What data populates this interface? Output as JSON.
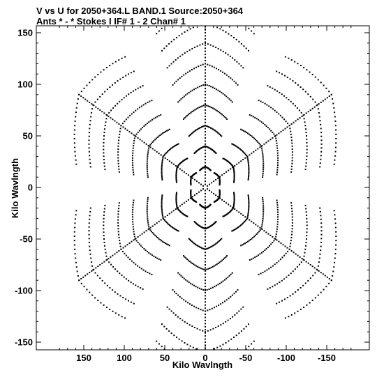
{
  "header": {
    "line1": "V vs U for 2050+364.L BAND.1   Source:2050+364",
    "line2": "Ants * - *      Stokes I  IF# 1 - 2  Chan# 1"
  },
  "chart_data": {
    "type": "scatter",
    "title": "V vs U for 2050+364.L BAND.1   Source:2050+364",
    "subtitle": "Ants * - *      Stokes I  IF# 1 - 2  Chan# 1",
    "xlabel": "Kilo Wavlngth",
    "ylabel": "Kilo Wavlngth",
    "xlim": [
      190,
      -190
    ],
    "ylim": [
      -157,
      155
    ],
    "x_ticks": [
      150,
      100,
      50,
      0,
      -50,
      -100,
      -150
    ],
    "x_tick_labels": [
      "150",
      "100",
      "50",
      "0",
      "-50",
      "-100",
      "-150"
    ],
    "y_ticks": [
      150,
      100,
      50,
      0,
      -50,
      -100,
      -150
    ],
    "y_tick_labels": [
      "150",
      "100",
      "50",
      "0",
      "-50",
      "-100",
      "-150"
    ],
    "grid": false,
    "legend": "none",
    "color": "#000000",
    "pattern": {
      "arm_angles_deg": [
        30,
        90,
        150,
        210,
        270,
        330
      ],
      "arm_max_radius": 180,
      "tracks_per_arm": 9,
      "points_per_track": 32,
      "arc_span_deg": 46,
      "description_of_sampling": "six-armed snowflake uv coverage symmetric about origin"
    }
  }
}
